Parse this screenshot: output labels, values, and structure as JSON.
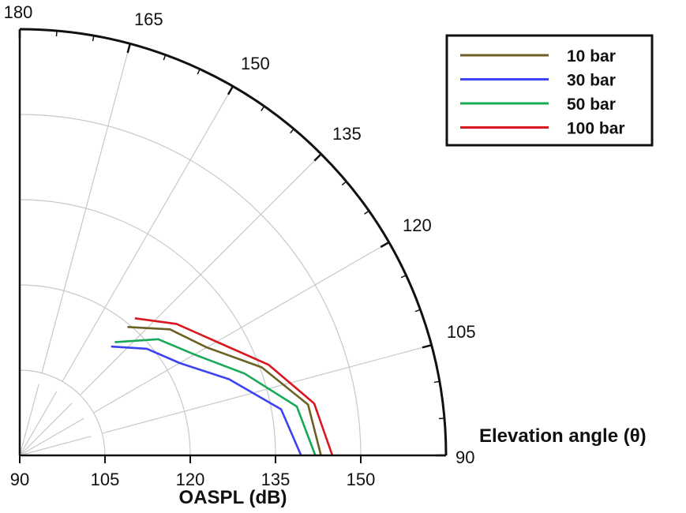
{
  "chart_data": {
    "type": "polar",
    "title": "",
    "radial_axis": {
      "label": "OASPL (dB)",
      "range": [
        90,
        165
      ],
      "ticks": [
        90,
        105,
        120,
        135,
        150
      ],
      "tick_labels": [
        "90",
        "105",
        "120",
        "135",
        "150"
      ]
    },
    "angular_axis": {
      "label": "Elevation angle (θ)",
      "range": [
        90,
        180
      ],
      "ticks": [
        90,
        105,
        120,
        135,
        150,
        165,
        180
      ],
      "tick_labels": [
        "90",
        "105",
        "120",
        "135",
        "150",
        "165",
        "180"
      ],
      "minor_step": 5
    },
    "legend": {
      "position": "top-right"
    },
    "series": [
      {
        "name": "10 bar",
        "color": "#6b6124",
        "points": [
          [
            90,
            143
          ],
          [
            100,
            141.5
          ],
          [
            110,
            135.3
          ],
          [
            120,
            128
          ],
          [
            130,
            124.5
          ],
          [
            140,
            119.5
          ]
        ]
      },
      {
        "name": "30 bar",
        "color": "#3b44f0",
        "points": [
          [
            90,
            139.5
          ],
          [
            100,
            136.7
          ],
          [
            110,
            129.2
          ],
          [
            120,
            122.5
          ],
          [
            130,
            119.2
          ],
          [
            140,
            115
          ]
        ]
      },
      {
        "name": "50 bar",
        "color": "#18a956",
        "points": [
          [
            90,
            142
          ],
          [
            100,
            139.5
          ],
          [
            110,
            132.1
          ],
          [
            120,
            125.5
          ],
          [
            130,
            121.8
          ],
          [
            140,
            116
          ]
        ]
      },
      {
        "name": "100 bar",
        "color": "#d9171f",
        "points": [
          [
            90,
            145
          ],
          [
            100,
            142.6
          ],
          [
            110,
            136.6
          ],
          [
            120,
            130
          ],
          [
            130,
            126
          ],
          [
            140,
            121.5
          ]
        ]
      }
    ]
  }
}
